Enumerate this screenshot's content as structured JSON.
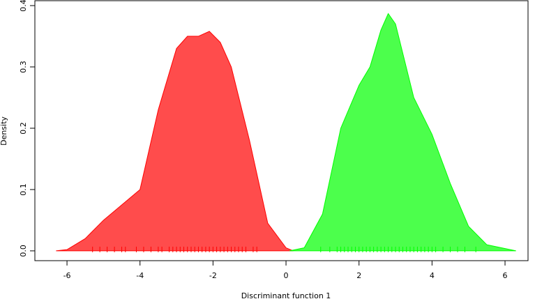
{
  "chart_data": {
    "type": "density",
    "xlabel": "Discriminant function 1",
    "ylabel": "Density",
    "xlim": [
      -6.88,
      6.63
    ],
    "ylim": [
      -0.016,
      0.408
    ],
    "xticks": [
      -6,
      -4,
      -2,
      0,
      2,
      4,
      6
    ],
    "yticks": [
      {
        "value": 0,
        "label": "0.0"
      },
      0.1,
      0.2,
      0.3,
      0.4
    ],
    "series": [
      {
        "color": "#ff0000",
        "x": [
          -6.3,
          -6,
          -5.5,
          -5,
          -4.5,
          -4,
          -3.5,
          -3,
          -2.7,
          -2.4,
          -2.1,
          -1.8,
          -1.5,
          -1,
          -0.5,
          0,
          0.2
        ],
        "values": [
          0,
          0.002,
          0.02,
          0.05,
          0.075,
          0.1,
          0.23,
          0.33,
          0.35,
          0.35,
          0.358,
          0.34,
          0.3,
          0.18,
          0.045,
          0.005,
          0
        ],
        "rug": [
          -5.3,
          -5.1,
          -4.9,
          -4.7,
          -4.5,
          -4.4,
          -4.1,
          -3.9,
          -3.7,
          -3.5,
          -3.4,
          -3.2,
          -3.1,
          -3.0,
          -2.9,
          -2.8,
          -2.7,
          -2.6,
          -2.5,
          -2.4,
          -2.3,
          -2.2,
          -2.1,
          -2.0,
          -1.9,
          -1.8,
          -1.7,
          -1.6,
          -1.5,
          -1.4,
          -1.3,
          -1.2,
          -1.1,
          -0.9,
          -0.8
        ]
      },
      {
        "color": "#00ff00",
        "x": [
          0.1,
          0.5,
          1,
          1.5,
          2,
          2.3,
          2.6,
          2.8,
          3,
          3.5,
          4,
          4.5,
          5,
          5.5,
          6.3
        ],
        "values": [
          0,
          0.005,
          0.06,
          0.2,
          0.27,
          0.3,
          0.36,
          0.387,
          0.37,
          0.25,
          0.19,
          0.11,
          0.04,
          0.01,
          0
        ],
        "rug": [
          0.95,
          1.2,
          1.4,
          1.5,
          1.6,
          1.7,
          1.8,
          1.9,
          2.0,
          2.1,
          2.2,
          2.3,
          2.4,
          2.5,
          2.6,
          2.7,
          2.8,
          2.9,
          3.0,
          3.1,
          3.2,
          3.3,
          3.4,
          3.5,
          3.6,
          3.7,
          3.8,
          3.9,
          4.0,
          4.1,
          4.3,
          4.5,
          4.7,
          4.9,
          5.2
        ]
      }
    ]
  }
}
